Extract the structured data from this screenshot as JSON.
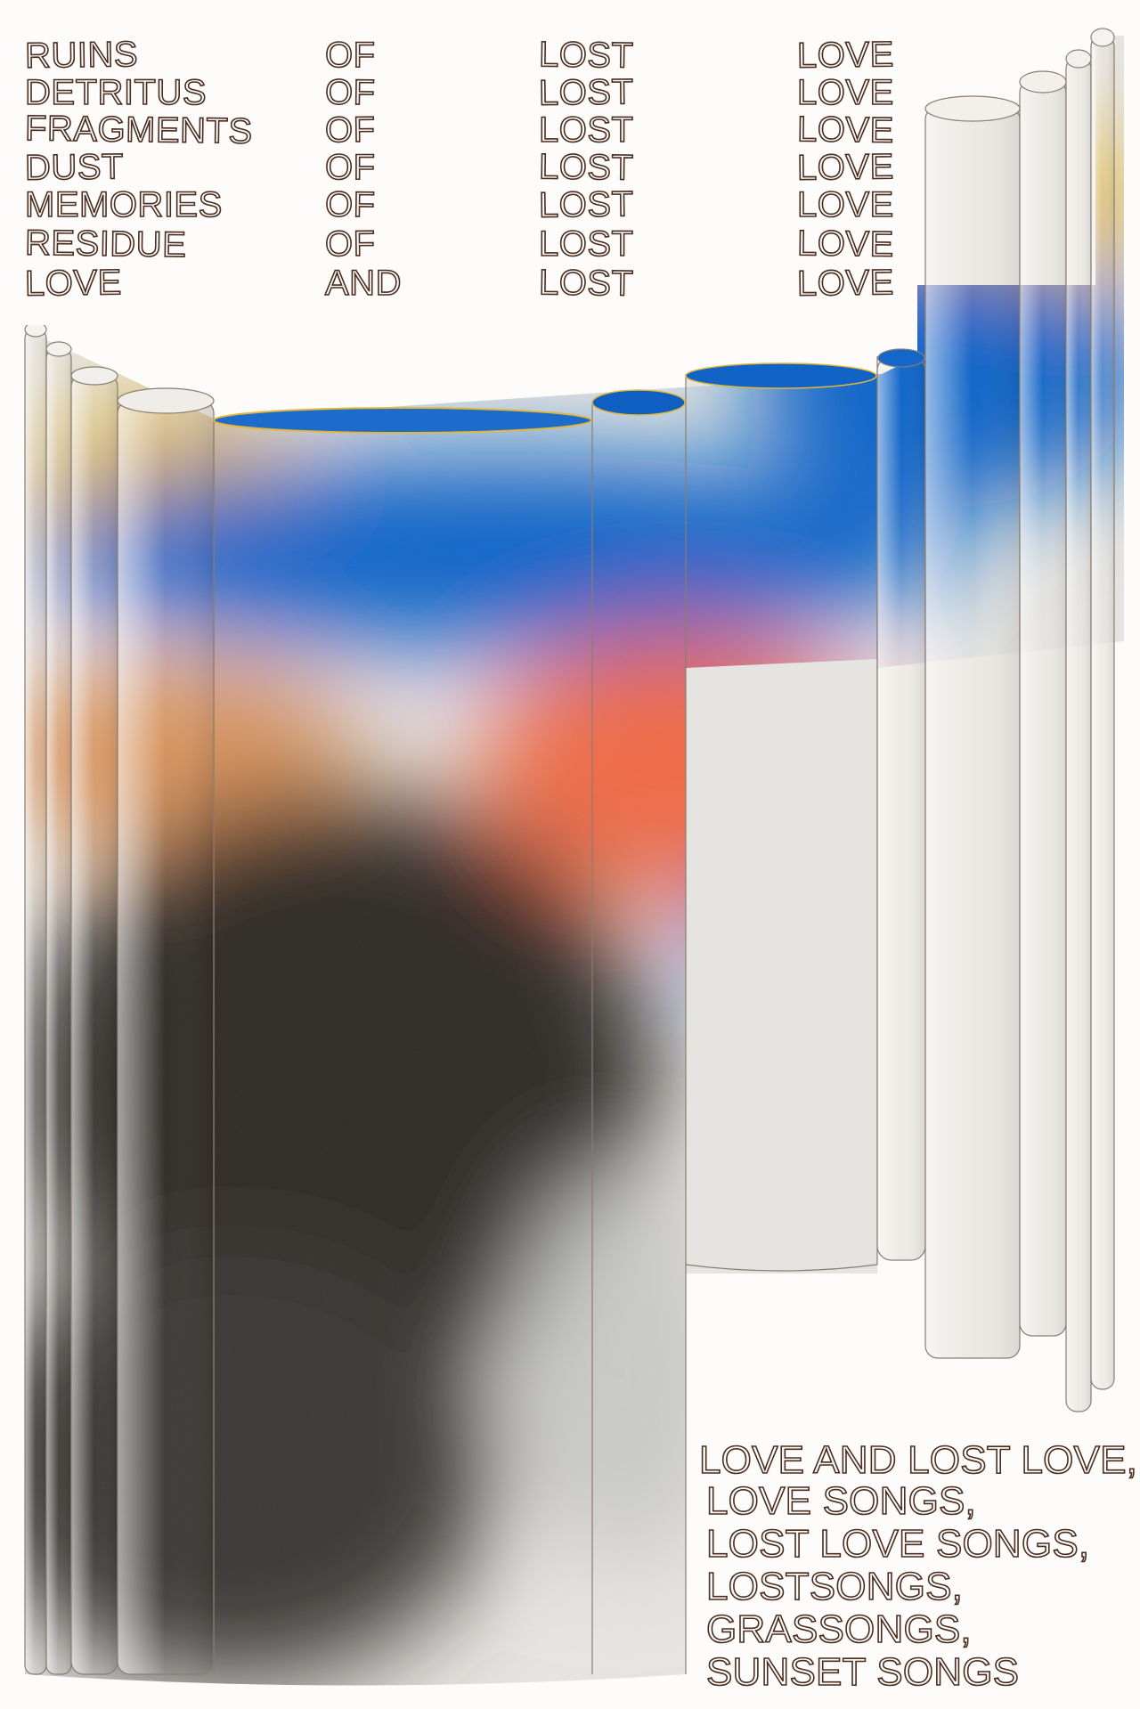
{
  "grid": {
    "rows": [
      [
        "RUINS",
        "OF",
        "LOST",
        "LOVE"
      ],
      [
        "DETRITUS",
        "OF",
        "LOST",
        "LOVE"
      ],
      [
        "FRAGMENTS",
        "OF",
        "LOST",
        "LOVE"
      ],
      [
        "DUST",
        "OF",
        "LOST",
        "LOVE"
      ],
      [
        "MEMORIES",
        "OF",
        "LOST",
        "LOVE"
      ],
      [
        "RESIDUE",
        "OF",
        "LOST",
        "LOVE"
      ],
      [
        "LOVE",
        "AND",
        "LOST",
        "LOVE"
      ]
    ]
  },
  "caption": {
    "lines": [
      "LOVE AND LOST LOVE,",
      "LOVE SONGS,",
      "LOST LOVE SONGS,",
      "LOSTSONGS,",
      "GRASSONGS,",
      "SUNSET SONGS"
    ]
  },
  "palette": {
    "ink": "#4a2c1f",
    "paper": "#fdfcfa",
    "yellow": "#e2b73a",
    "blue": "#0d63c9",
    "orange": "#ef6a45",
    "cyan": "#1aa4dc",
    "black": "#2d2a28",
    "grey": "#c9c9c7"
  }
}
